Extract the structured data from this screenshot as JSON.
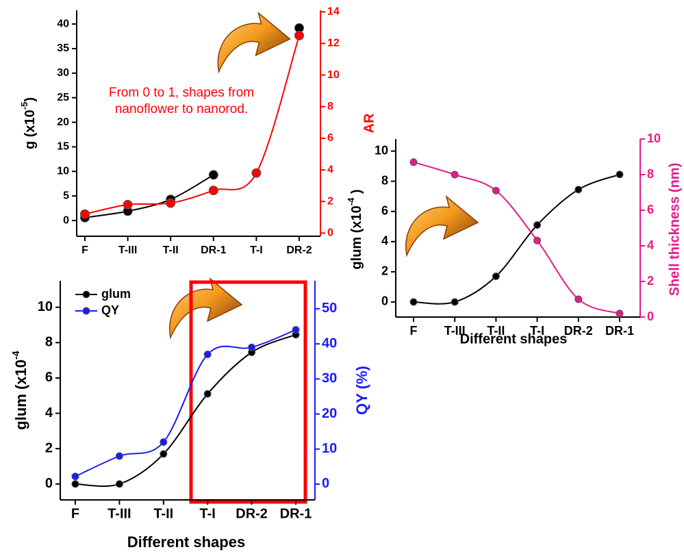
{
  "chart_data": [
    {
      "type": "line",
      "categories": [
        "F",
        "T-III",
        "T-II",
        "DR-1",
        "T-I",
        "DR-2"
      ],
      "ylabel": {
        "text": "g (x10",
        "sup": "-5",
        "end": ")"
      },
      "y2label": "AR",
      "annotation": [
        "From 0 to 1, shapes from",
        "nanoflower to nanorod."
      ],
      "ylim": [
        -3.2,
        42.8
      ],
      "yticks": [
        0,
        5,
        10,
        15,
        20,
        25,
        30,
        35,
        40
      ],
      "y2lim": [
        -0.2,
        14.1
      ],
      "y2ticks": [
        0,
        2,
        4,
        6,
        8,
        10,
        12,
        14
      ],
      "series": [
        {
          "color": "#000000",
          "values": [
            0.6,
            1.9,
            4.3,
            9.3,
            null,
            39.2
          ]
        },
        {
          "color": "#ff0000",
          "axis": "y2",
          "values": [
            1.2,
            1.8,
            1.9,
            2.7,
            3.8,
            12.5
          ]
        }
      ]
    },
    {
      "type": "line",
      "categories": [
        "F",
        "T-III",
        "T-II",
        "T-I",
        "DR-2",
        "DR-1"
      ],
      "xlabel": "Different shapes",
      "ylabel": {
        "text": "glum (x10",
        "sup": "-4",
        "end": " )"
      },
      "y2label": "Shell thickness (nm)",
      "ylim": [
        -1,
        10.8
      ],
      "yticks": [
        0,
        2,
        4,
        6,
        8,
        10
      ],
      "y2lim": [
        0,
        10
      ],
      "y2ticks": [
        0,
        2,
        4,
        6,
        8,
        10
      ],
      "series": [
        {
          "color": "#000000",
          "values": [
            0,
            0,
            1.7,
            5.1,
            7.45,
            8.45
          ]
        },
        {
          "color": "#e6198c",
          "axis": "y2",
          "values": [
            8.7,
            8.0,
            7.1,
            4.3,
            1.0,
            0.2
          ]
        }
      ]
    },
    {
      "type": "line",
      "categories": [
        "F",
        "T-III",
        "T-II",
        "T-I",
        "DR-2",
        "DR-1"
      ],
      "xlabel": "Different shapes",
      "ylabel": {
        "text": "glum (x10",
        "sup": "-4"
      },
      "y2label": "QY (%)",
      "legend": "upper left",
      "ylim": [
        -0.9,
        11.5
      ],
      "yticks": [
        0,
        2,
        4,
        6,
        8,
        10
      ],
      "y2lim": [
        -4.5,
        58
      ],
      "y2ticks": [
        0,
        10,
        20,
        30,
        40,
        50
      ],
      "series": [
        {
          "name": "glum",
          "color": "#000000",
          "values": [
            0,
            0,
            1.7,
            5.1,
            7.45,
            8.45
          ]
        },
        {
          "name": "QY",
          "color": "#1a1aff",
          "axis": "y2",
          "values": [
            2.2,
            8,
            12,
            37,
            39,
            44
          ]
        }
      ]
    }
  ]
}
